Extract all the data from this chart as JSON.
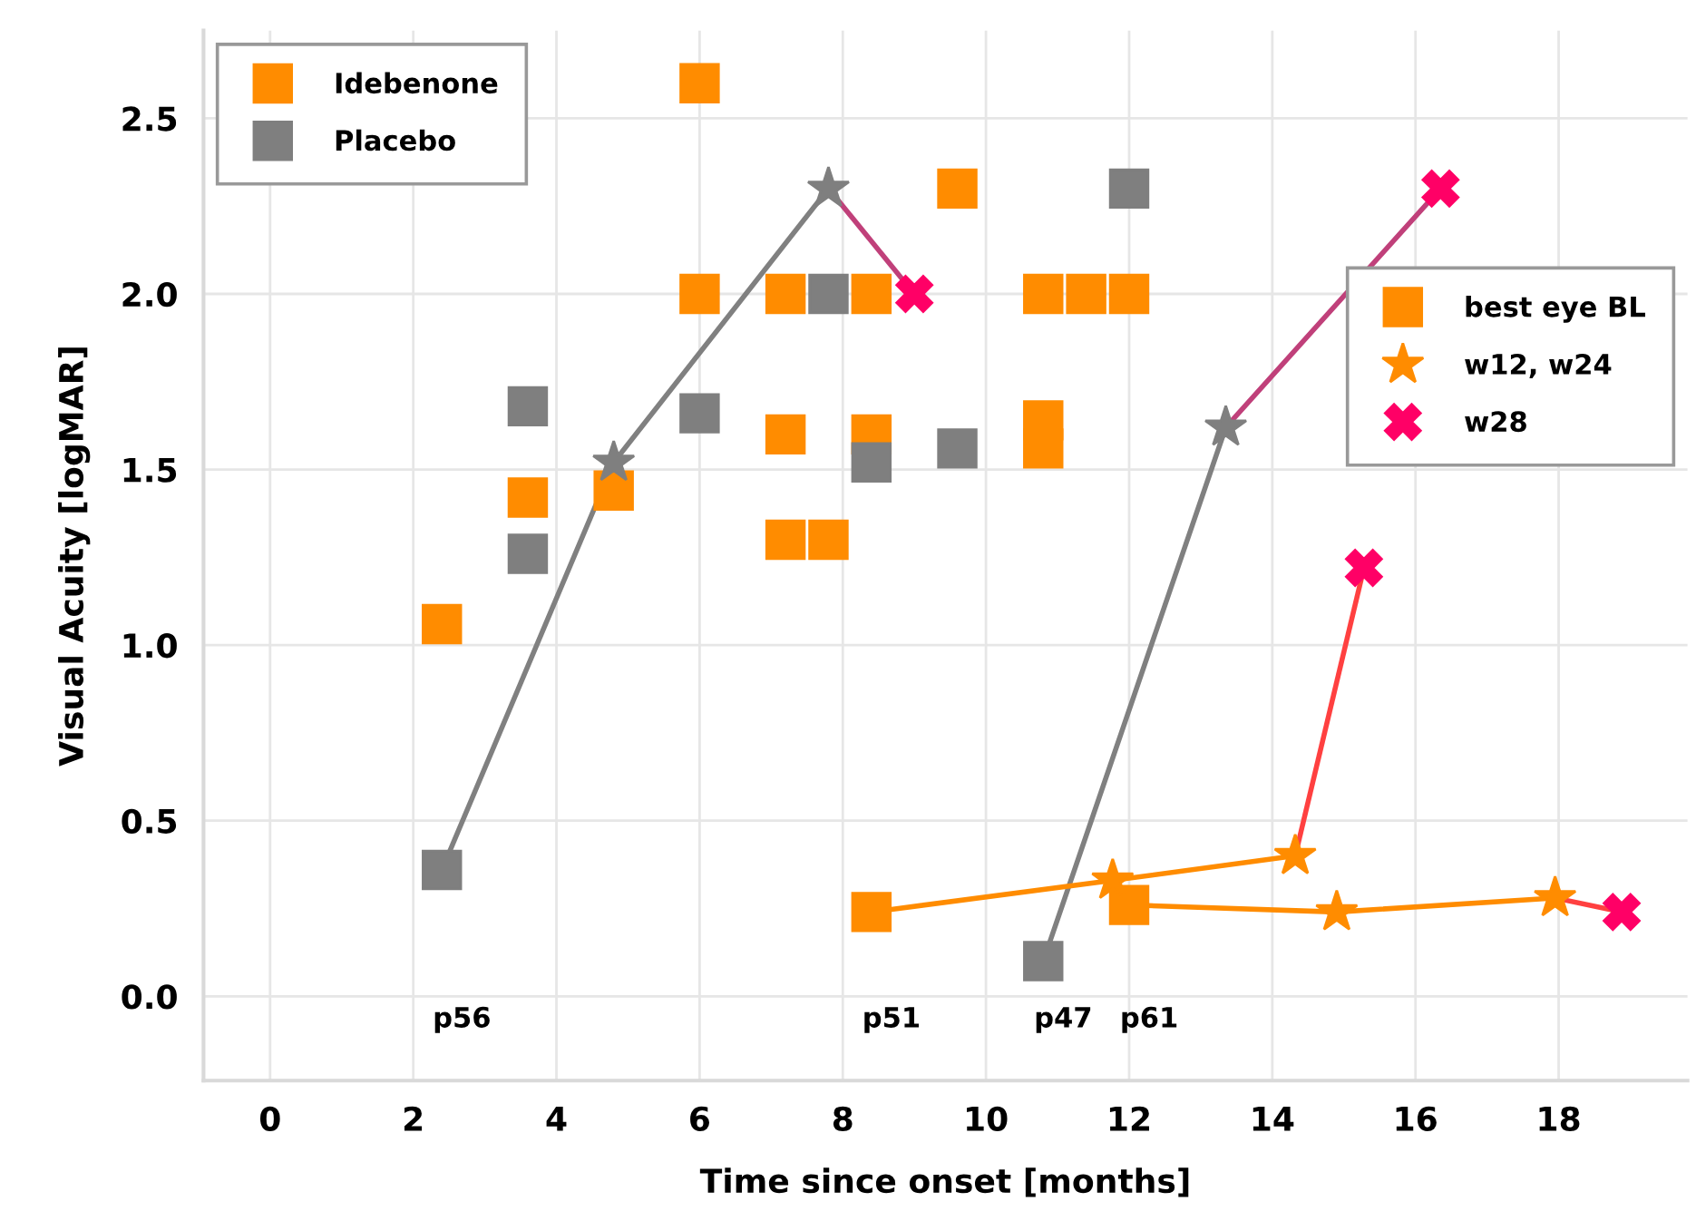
{
  "chart_data": {
    "type": "scatter",
    "xlabel": "Time since onset [months]",
    "ylabel": "Visual Acuity [logMAR]",
    "xlim": [
      -0.93,
      19.8
    ],
    "ylim": [
      -0.24,
      2.75
    ],
    "xticks": [
      0,
      2,
      4,
      6,
      8,
      10,
      12,
      14,
      16,
      18
    ],
    "yticks": [
      {
        "value": 0,
        "label": "0.0"
      },
      {
        "value": 0.5,
        "label": "0.5"
      },
      {
        "value": 1,
        "label": "1.0"
      },
      {
        "value": 1.5,
        "label": "1.5"
      },
      {
        "value": 2,
        "label": "2.0"
      },
      {
        "value": 2.5,
        "label": "2.5"
      }
    ],
    "grid": true,
    "legend": "top left",
    "series": [
      {
        "type": "line",
        "color": "#808080",
        "marker": "none",
        "x": [
          2.4,
          4.8,
          7.8
        ],
        "values": [
          0.36,
          1.52,
          2.3
        ]
      },
      {
        "type": "line",
        "color": "#c0407a",
        "marker": "none",
        "x": [
          7.8,
          9.0
        ],
        "values": [
          2.3,
          2.0
        ]
      },
      {
        "type": "line",
        "color": "#808080",
        "marker": "none",
        "x": [
          10.8,
          13.35
        ],
        "values": [
          0.1,
          1.62
        ]
      },
      {
        "type": "line",
        "color": "#c0407a",
        "marker": "none",
        "x": [
          13.35,
          16.35
        ],
        "values": [
          1.62,
          2.3
        ]
      },
      {
        "type": "line",
        "color": "#ff8c00",
        "marker": "none",
        "x": [
          8.4,
          11.77,
          14.32
        ],
        "values": [
          0.24,
          0.33,
          0.4
        ]
      },
      {
        "type": "line",
        "color": "#ff4040",
        "marker": "none",
        "x": [
          14.32,
          15.28
        ],
        "values": [
          0.4,
          1.22
        ]
      },
      {
        "type": "line",
        "color": "#ff8c00",
        "marker": "none",
        "x": [
          12.0,
          14.9,
          17.95
        ],
        "values": [
          0.26,
          0.24,
          0.28
        ]
      },
      {
        "type": "line",
        "color": "#ff4040",
        "marker": "none",
        "x": [
          17.95,
          18.88
        ],
        "values": [
          0.28,
          0.24
        ]
      },
      {
        "name": "Idebenone",
        "marker": "square",
        "color": "#ff8c00",
        "x": [
          2.4,
          3.6,
          4.8,
          6.0,
          6.0,
          7.2,
          7.2,
          7.2,
          7.8,
          8.4,
          8.4,
          9.6,
          10.8,
          10.8,
          10.8,
          11.4,
          12.0
        ],
        "values": [
          1.06,
          1.42,
          1.44,
          2.6,
          2.0,
          2.0,
          1.6,
          1.3,
          1.3,
          2.0,
          1.6,
          2.3,
          2.0,
          1.64,
          1.56,
          2.0,
          2.0
        ]
      },
      {
        "name": "Placebo",
        "marker": "square",
        "color": "#7f7f7f",
        "x": [
          3.6,
          3.6,
          6.0,
          7.8,
          8.4,
          9.6,
          12.0
        ],
        "values": [
          1.68,
          1.26,
          1.66,
          2.0,
          1.52,
          1.56,
          2.3
        ]
      },
      {
        "name": "best eye BL",
        "marker": "square",
        "color": "#ff8c00",
        "colors": [
          "#7f7f7f",
          "#ff8c00",
          "#7f7f7f",
          "#ff8c00"
        ],
        "x": [
          2.4,
          8.4,
          10.8,
          12.0
        ],
        "values": [
          0.36,
          0.24,
          0.1,
          0.26
        ]
      },
      {
        "name": "w12, w24",
        "marker": "star",
        "color": "#ff8c00",
        "colors": [
          "#7f7f7f",
          "#7f7f7f",
          "#7f7f7f",
          "#ff8c00",
          "#ff8c00",
          "#ff8c00",
          "#ff8c00"
        ],
        "x": [
          4.8,
          7.8,
          13.35,
          11.77,
          14.32,
          14.9,
          17.95
        ],
        "values": [
          1.52,
          2.3,
          1.62,
          0.33,
          0.4,
          0.24,
          0.28
        ]
      },
      {
        "name": "w28",
        "marker": "cross",
        "color": "#ff0066",
        "colors": [
          "#ff0066",
          "#ff0066",
          "#ff0066",
          "#ff0066"
        ],
        "x": [
          9.0,
          16.35,
          15.28,
          18.88
        ],
        "values": [
          2.0,
          2.3,
          1.22,
          0.24
        ]
      }
    ],
    "annotations": [
      "p56",
      "p51",
      "p47",
      "p61"
    ]
  }
}
